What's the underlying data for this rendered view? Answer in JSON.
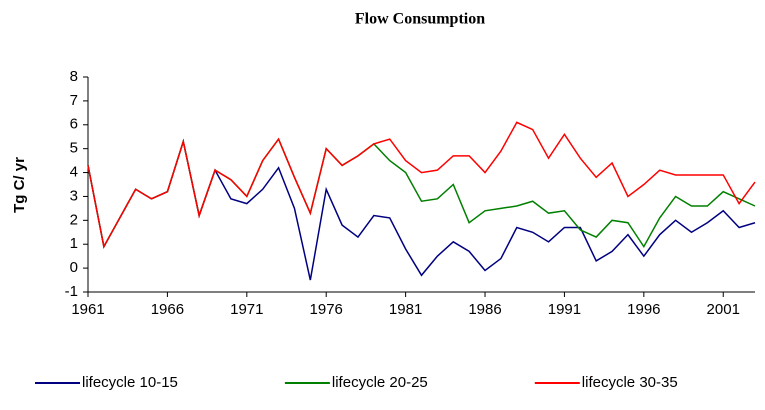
{
  "chart_data": {
    "type": "line",
    "title": "Flow Consumption",
    "y_label": "Tg C/ yr",
    "x": [
      1961,
      1962,
      1963,
      1964,
      1965,
      1966,
      1967,
      1968,
      1969,
      1970,
      1971,
      1972,
      1973,
      1974,
      1975,
      1976,
      1977,
      1978,
      1979,
      1980,
      1981,
      1982,
      1983,
      1984,
      1985,
      1986,
      1987,
      1988,
      1989,
      1990,
      1991,
      1992,
      1993,
      1994,
      1995,
      1996,
      1997,
      1998,
      1999,
      2000,
      2001,
      2002,
      2003
    ],
    "series": [
      {
        "name": "lifecycle 10-15",
        "color": "#000080",
        "values": [
          4.3,
          0.9,
          2.1,
          3.3,
          2.9,
          3.2,
          5.3,
          2.2,
          4.1,
          2.9,
          2.7,
          3.3,
          4.2,
          2.5,
          -0.5,
          3.3,
          1.8,
          1.3,
          2.2,
          2.1,
          0.8,
          -0.3,
          0.5,
          1.1,
          0.7,
          -0.1,
          0.4,
          1.7,
          1.5,
          1.1,
          1.7,
          1.7,
          0.3,
          0.7,
          1.4,
          0.5,
          1.4,
          2.0,
          1.5,
          1.9,
          2.4,
          1.7,
          1.9
        ]
      },
      {
        "name": "lifecycle 20-25",
        "color": "#008000",
        "values": [
          4.3,
          0.9,
          2.1,
          3.3,
          2.9,
          3.2,
          5.3,
          2.2,
          4.1,
          3.7,
          3.0,
          4.5,
          5.4,
          3.8,
          2.3,
          5.0,
          4.3,
          4.7,
          5.2,
          4.5,
          4.0,
          2.8,
          2.9,
          3.5,
          1.9,
          2.4,
          2.5,
          2.6,
          2.8,
          2.3,
          2.4,
          1.6,
          1.3,
          2.0,
          1.9,
          0.9,
          2.1,
          3.0,
          2.6,
          2.6,
          3.2,
          2.9,
          2.6
        ]
      },
      {
        "name": "lifecycle 30-35",
        "color": "#ff0000",
        "values": [
          4.3,
          0.9,
          2.1,
          3.3,
          2.9,
          3.2,
          5.3,
          2.2,
          4.1,
          3.7,
          3.0,
          4.5,
          5.4,
          3.8,
          2.3,
          5.0,
          4.3,
          4.7,
          5.2,
          5.4,
          4.5,
          4.0,
          4.1,
          4.7,
          4.7,
          4.0,
          4.9,
          6.1,
          5.8,
          4.6,
          5.6,
          4.6,
          3.8,
          4.4,
          3.0,
          3.5,
          4.1,
          3.9,
          3.9,
          3.9,
          3.9,
          2.7,
          3.6
        ]
      }
    ],
    "xlim": [
      1961,
      2003
    ],
    "xticks": [
      1961,
      1966,
      1971,
      1976,
      1981,
      1986,
      1991,
      1996,
      2001
    ],
    "ylim": [
      -1,
      8
    ],
    "yticks": [
      -1,
      0,
      1,
      2,
      3,
      4,
      5,
      6,
      7,
      8
    ],
    "grid": false,
    "legend": "bottom"
  }
}
